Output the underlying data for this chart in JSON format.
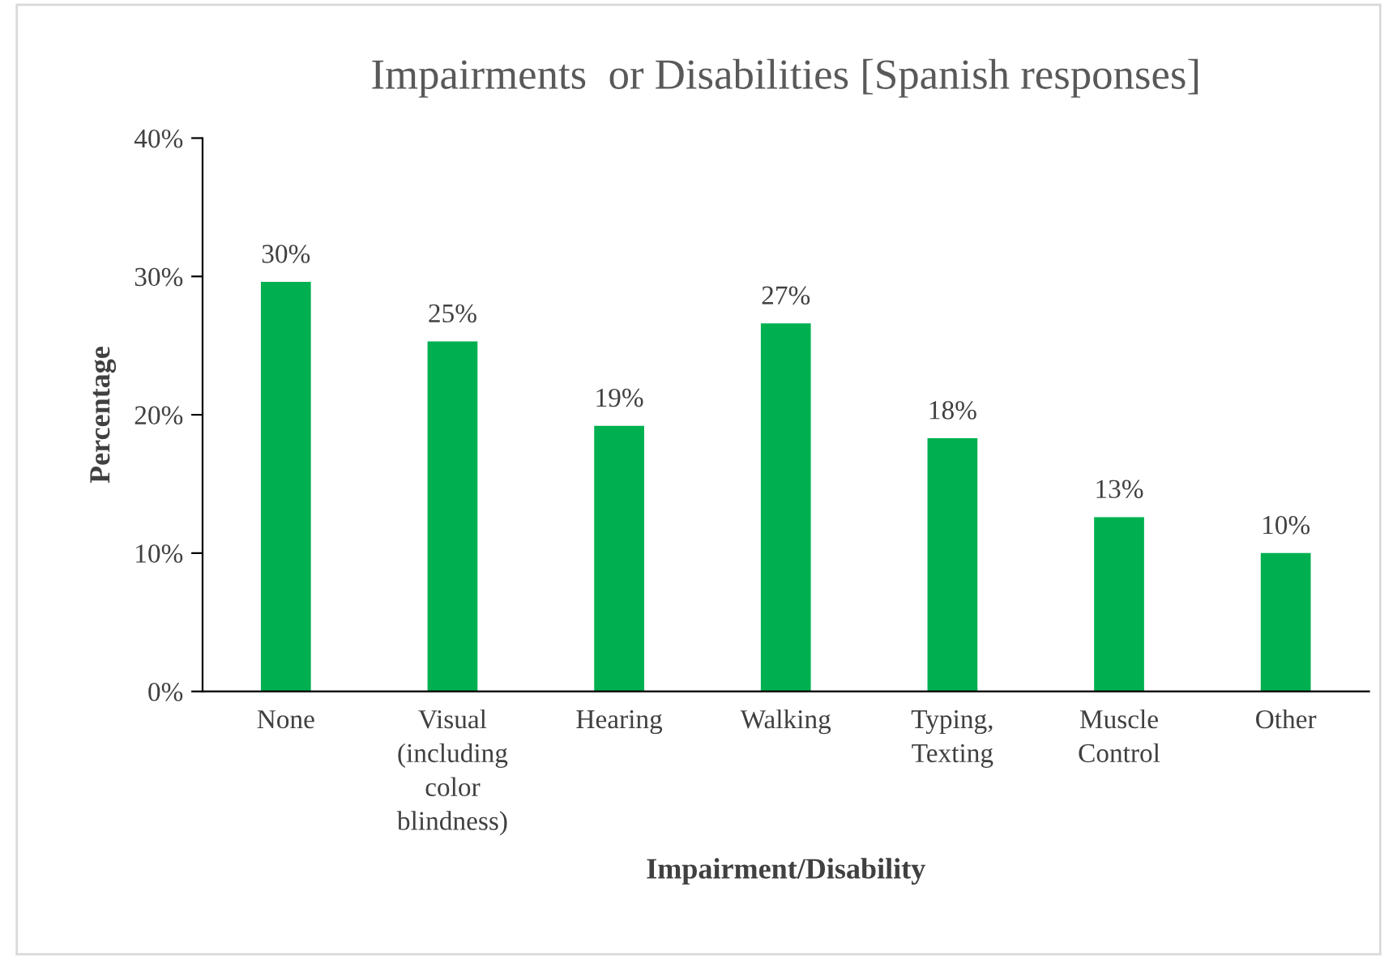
{
  "chart_data": {
    "type": "bar",
    "title": "Impairments  or Disabilities [Spanish responses]",
    "xlabel": "Impairment/Disability",
    "ylabel": "Percentage",
    "categories": [
      "None",
      "Visual\n(including\ncolor\nblindness)",
      "Hearing",
      "Walking",
      "Typing,\nTexting",
      "Muscle\nControl",
      "Other"
    ],
    "values": [
      29.6,
      25.3,
      19.2,
      26.6,
      18.3,
      12.6,
      10.0
    ],
    "value_labels": [
      "30%",
      "25%",
      "19%",
      "27%",
      "18%",
      "13%",
      "10%"
    ],
    "color": "#00b050",
    "ylim": [
      0,
      40
    ],
    "yticks": [
      {
        "value": 0,
        "label": "0%"
      },
      {
        "value": 10,
        "label": "10%"
      },
      {
        "value": 20,
        "label": "20%"
      },
      {
        "value": 30,
        "label": "30%"
      },
      {
        "value": 40,
        "label": "40%"
      }
    ],
    "grid": false,
    "legend": false
  }
}
